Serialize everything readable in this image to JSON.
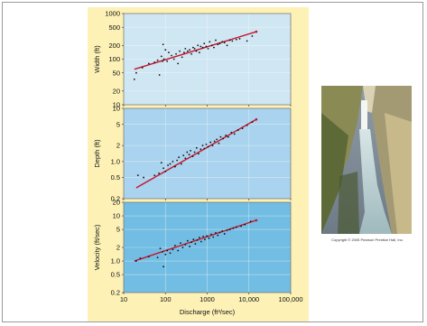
{
  "chart_data": [
    {
      "type": "scatter",
      "ylabel": "Width (ft)",
      "yscale": "log",
      "ylim": [
        10,
        1000
      ],
      "yticks": [
        "1000",
        "500",
        "200",
        "100",
        "50",
        "20",
        "10"
      ],
      "xscale": "log",
      "xlim": [
        10,
        100000
      ],
      "background": "#cfe6f3",
      "points": [
        [
          18,
          36
        ],
        [
          20,
          50
        ],
        [
          28,
          65
        ],
        [
          40,
          80
        ],
        [
          55,
          85
        ],
        [
          65,
          95
        ],
        [
          72,
          45
        ],
        [
          80,
          115
        ],
        [
          85,
          90
        ],
        [
          88,
          210
        ],
        [
          92,
          100
        ],
        [
          100,
          160
        ],
        [
          110,
          90
        ],
        [
          120,
          140
        ],
        [
          140,
          120
        ],
        [
          160,
          100
        ],
        [
          180,
          130
        ],
        [
          200,
          80
        ],
        [
          220,
          150
        ],
        [
          250,
          110
        ],
        [
          280,
          140
        ],
        [
          300,
          170
        ],
        [
          340,
          150
        ],
        [
          380,
          160
        ],
        [
          420,
          130
        ],
        [
          460,
          180
        ],
        [
          500,
          170
        ],
        [
          550,
          150
        ],
        [
          600,
          200
        ],
        [
          650,
          140
        ],
        [
          700,
          190
        ],
        [
          780,
          180
        ],
        [
          850,
          220
        ],
        [
          950,
          190
        ],
        [
          1050,
          170
        ],
        [
          1150,
          240
        ],
        [
          1300,
          200
        ],
        [
          1450,
          180
        ],
        [
          1600,
          260
        ],
        [
          1800,
          210
        ],
        [
          2000,
          220
        ],
        [
          2300,
          240
        ],
        [
          2600,
          230
        ],
        [
          3000,
          200
        ],
        [
          3500,
          260
        ],
        [
          4000,
          250
        ],
        [
          5000,
          270
        ],
        [
          6000,
          280
        ],
        [
          9000,
          250
        ],
        [
          12000,
          320
        ]
      ],
      "fit_line": [
        [
          18,
          60
        ],
        [
          15000,
          400
        ]
      ],
      "fit_color": "#c8142c"
    },
    {
      "type": "scatter",
      "ylabel": "Depth (ft)",
      "yscale": "log",
      "ylim": [
        0.2,
        10
      ],
      "yticks": [
        "10",
        "5",
        "2",
        "1.0",
        "0.5",
        "0.2"
      ],
      "xscale": "log",
      "xlim": [
        10,
        100000
      ],
      "background": "#a9d3ee",
      "points": [
        [
          22,
          0.55
        ],
        [
          30,
          0.5
        ],
        [
          55,
          0.55
        ],
        [
          70,
          0.6
        ],
        [
          80,
          0.95
        ],
        [
          90,
          0.75
        ],
        [
          100,
          0.65
        ],
        [
          115,
          0.85
        ],
        [
          130,
          0.9
        ],
        [
          150,
          1.0
        ],
        [
          170,
          0.8
        ],
        [
          190,
          1.05
        ],
        [
          210,
          1.2
        ],
        [
          240,
          0.9
        ],
        [
          270,
          1.3
        ],
        [
          300,
          1.15
        ],
        [
          330,
          1.5
        ],
        [
          370,
          1.35
        ],
        [
          400,
          1.6
        ],
        [
          450,
          1.25
        ],
        [
          500,
          1.5
        ],
        [
          560,
          1.8
        ],
        [
          620,
          1.4
        ],
        [
          700,
          1.7
        ],
        [
          780,
          2.0
        ],
        [
          860,
          1.75
        ],
        [
          950,
          2.1
        ],
        [
          1050,
          1.9
        ],
        [
          1200,
          2.3
        ],
        [
          1350,
          2.0
        ],
        [
          1500,
          2.4
        ],
        [
          1700,
          2.6
        ],
        [
          1900,
          2.2
        ],
        [
          2100,
          2.9
        ],
        [
          2400,
          2.7
        ],
        [
          2800,
          3.1
        ],
        [
          3200,
          2.9
        ],
        [
          3800,
          3.5
        ],
        [
          4500,
          3.3
        ],
        [
          5500,
          3.9
        ],
        [
          7000,
          4.2
        ],
        [
          9000,
          4.8
        ],
        [
          12000,
          5.5
        ]
      ],
      "fit_line": [
        [
          20,
          0.32
        ],
        [
          15000,
          6.2
        ]
      ],
      "fit_color": "#c8142c"
    },
    {
      "type": "scatter",
      "ylabel": "Velocity (ft/sec)",
      "xlabel": "Discharge (ft³/sec)",
      "yscale": "log",
      "ylim": [
        0.2,
        20
      ],
      "yticks": [
        "20",
        "10",
        "5",
        "2",
        "1.0",
        "0.5",
        "0.2"
      ],
      "xscale": "log",
      "xlim": [
        10,
        100000
      ],
      "xticks": [
        "10",
        "100",
        "1000",
        "10,000",
        "100,000"
      ],
      "background": "#72bde3",
      "points": [
        [
          20,
          1.0
        ],
        [
          25,
          1.15
        ],
        [
          40,
          1.25
        ],
        [
          65,
          1.2
        ],
        [
          75,
          1.9
        ],
        [
          85,
          1.6
        ],
        [
          90,
          0.75
        ],
        [
          100,
          1.4
        ],
        [
          110,
          1.7
        ],
        [
          130,
          1.5
        ],
        [
          150,
          1.8
        ],
        [
          170,
          2.2
        ],
        [
          200,
          1.7
        ],
        [
          230,
          2.5
        ],
        [
          260,
          2.0
        ],
        [
          300,
          2.3
        ],
        [
          340,
          2.8
        ],
        [
          380,
          2.1
        ],
        [
          420,
          2.6
        ],
        [
          470,
          3.0
        ],
        [
          520,
          2.4
        ],
        [
          580,
          2.9
        ],
        [
          650,
          3.3
        ],
        [
          720,
          2.7
        ],
        [
          800,
          3.5
        ],
        [
          880,
          3.0
        ],
        [
          980,
          3.6
        ],
        [
          1100,
          3.2
        ],
        [
          1250,
          3.9
        ],
        [
          1400,
          3.4
        ],
        [
          1600,
          4.2
        ],
        [
          1800,
          3.7
        ],
        [
          2000,
          4.3
        ],
        [
          2300,
          4.6
        ],
        [
          2600,
          4.0
        ],
        [
          3000,
          4.8
        ],
        [
          3500,
          5.0
        ],
        [
          4200,
          5.3
        ],
        [
          5000,
          5.6
        ],
        [
          6500,
          5.9
        ],
        [
          8000,
          6.4
        ],
        [
          11000,
          7.5
        ]
      ],
      "fit_line": [
        [
          18,
          1.0
        ],
        [
          15000,
          8.0
        ]
      ],
      "fit_color": "#c8142c"
    }
  ],
  "photo": {
    "icon": "waterfall-canyon-photo-icon",
    "caption": "Copyright © 2005 Pearson Prentice Hall, Inc."
  }
}
